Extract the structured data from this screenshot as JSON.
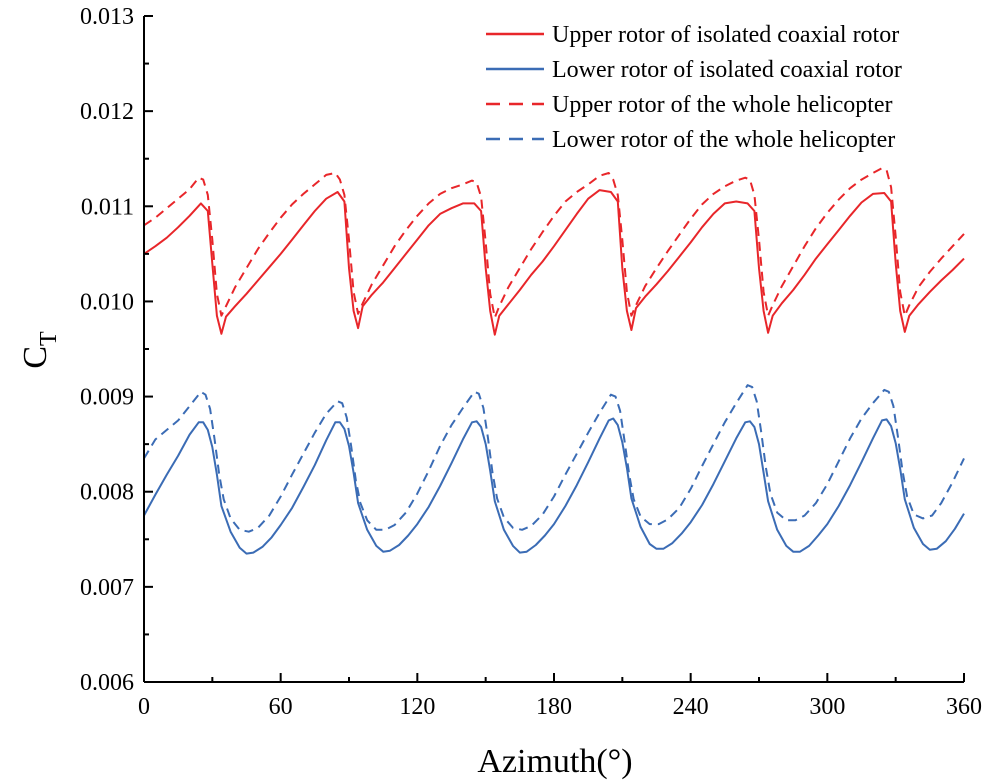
{
  "chart_data": {
    "type": "line",
    "title": "",
    "xlabel": "Azimuth(°)",
    "ylabel_main": "C",
    "ylabel_sub": "T",
    "xlim": [
      0,
      360
    ],
    "ylim": [
      0.006,
      0.013
    ],
    "xticks": [
      "0",
      "60",
      "120",
      "180",
      "240",
      "300",
      "360"
    ],
    "yticks": [
      "0.006",
      "0.007",
      "0.008",
      "0.009",
      "0.010",
      "0.011",
      "0.012",
      "0.013"
    ],
    "grid": false,
    "legend_position": "top-right",
    "series": [
      {
        "name": "Upper rotor of isolated coaxial rotor",
        "color": "#e8262a",
        "dash": "solid",
        "x": [
          0,
          5,
          10,
          15,
          20,
          25,
          28,
          30,
          32,
          34,
          36,
          40,
          45,
          50,
          55,
          60,
          65,
          70,
          75,
          80,
          85,
          88,
          90,
          92,
          94,
          96,
          100,
          105,
          110,
          115,
          120,
          125,
          130,
          135,
          140,
          145,
          148,
          150,
          152,
          154,
          156,
          160,
          165,
          170,
          175,
          180,
          185,
          190,
          195,
          200,
          205,
          208,
          210,
          212,
          214,
          216,
          220,
          225,
          230,
          235,
          240,
          245,
          250,
          255,
          260,
          265,
          268,
          270,
          272,
          274,
          276,
          280,
          285,
          290,
          295,
          300,
          305,
          310,
          315,
          320,
          325,
          328,
          330,
          332,
          334,
          336,
          340,
          345,
          350,
          355,
          360
        ],
        "y": [
          0.0105,
          0.01058,
          0.01067,
          0.01078,
          0.0109,
          0.01103,
          0.01095,
          0.0104,
          0.00985,
          0.00966,
          0.00984,
          0.00995,
          0.01008,
          0.01022,
          0.01036,
          0.0105,
          0.01065,
          0.0108,
          0.01095,
          0.01108,
          0.01115,
          0.01105,
          0.01035,
          0.0099,
          0.00972,
          0.00995,
          0.01007,
          0.0102,
          0.01035,
          0.0105,
          0.01065,
          0.0108,
          0.01092,
          0.01098,
          0.01103,
          0.01103,
          0.01095,
          0.01035,
          0.0099,
          0.00965,
          0.00985,
          0.00997,
          0.01012,
          0.01028,
          0.01042,
          0.01058,
          0.01075,
          0.01092,
          0.01108,
          0.01117,
          0.01115,
          0.01105,
          0.01035,
          0.0099,
          0.0097,
          0.00993,
          0.01005,
          0.01018,
          0.01032,
          0.01047,
          0.01062,
          0.01078,
          0.01092,
          0.01103,
          0.01105,
          0.01103,
          0.01095,
          0.01035,
          0.0099,
          0.00967,
          0.00985,
          0.00998,
          0.01012,
          0.01028,
          0.01045,
          0.0106,
          0.01075,
          0.0109,
          0.01104,
          0.01113,
          0.01114,
          0.01105,
          0.0104,
          0.0099,
          0.00968,
          0.00985,
          0.00997,
          0.0101,
          0.01022,
          0.01033,
          0.01045
        ]
      },
      {
        "name": "Lower rotor of isolated coaxial rotor",
        "color": "#3b6cb5",
        "dash": "solid",
        "x": [
          0,
          5,
          10,
          15,
          20,
          24,
          26,
          28,
          30,
          32,
          34,
          38,
          42,
          45,
          48,
          52,
          56,
          60,
          65,
          70,
          75,
          80,
          84,
          86,
          88,
          90,
          92,
          94,
          98,
          102,
          105,
          108,
          112,
          116,
          120,
          125,
          130,
          135,
          140,
          144,
          146,
          148,
          150,
          152,
          154,
          158,
          162,
          165,
          168,
          172,
          176,
          180,
          185,
          190,
          195,
          200,
          204,
          206,
          208,
          210,
          212,
          214,
          218,
          222,
          225,
          228,
          232,
          236,
          240,
          245,
          250,
          255,
          260,
          264,
          266,
          268,
          270,
          272,
          274,
          278,
          282,
          285,
          288,
          292,
          296,
          300,
          305,
          310,
          315,
          320,
          324,
          326,
          328,
          330,
          332,
          334,
          338,
          342,
          345,
          348,
          352,
          356,
          360
        ],
        "y": [
          0.00775,
          0.00797,
          0.00818,
          0.00838,
          0.0086,
          0.00873,
          0.00873,
          0.00865,
          0.00847,
          0.00818,
          0.00785,
          0.00758,
          0.00741,
          0.00735,
          0.00736,
          0.00742,
          0.00752,
          0.00765,
          0.00783,
          0.00805,
          0.00828,
          0.00854,
          0.00873,
          0.00873,
          0.00866,
          0.00848,
          0.0082,
          0.00788,
          0.0076,
          0.00743,
          0.00737,
          0.00738,
          0.00744,
          0.00754,
          0.00766,
          0.00784,
          0.00806,
          0.0083,
          0.00855,
          0.00873,
          0.00874,
          0.00868,
          0.0085,
          0.00822,
          0.0079,
          0.0076,
          0.00743,
          0.00736,
          0.00737,
          0.00744,
          0.00754,
          0.00766,
          0.00785,
          0.00807,
          0.00831,
          0.00856,
          0.00875,
          0.00877,
          0.0087,
          0.00852,
          0.00825,
          0.00793,
          0.00763,
          0.00745,
          0.0074,
          0.0074,
          0.00746,
          0.00756,
          0.00768,
          0.00786,
          0.00808,
          0.00832,
          0.00856,
          0.00873,
          0.00874,
          0.00868,
          0.0085,
          0.0082,
          0.0079,
          0.0076,
          0.00743,
          0.00737,
          0.00737,
          0.00743,
          0.00754,
          0.00766,
          0.00785,
          0.00807,
          0.00831,
          0.00856,
          0.00875,
          0.00876,
          0.00869,
          0.00851,
          0.00824,
          0.00792,
          0.00762,
          0.00745,
          0.00739,
          0.0074,
          0.00748,
          0.00761,
          0.00777
        ]
      },
      {
        "name": "Upper rotor of the whole helicopter",
        "color": "#e8262a",
        "dash": "dashed",
        "x": [
          0,
          5,
          10,
          15,
          20,
          24,
          26,
          28,
          30,
          32,
          34,
          36,
          40,
          45,
          50,
          55,
          60,
          65,
          70,
          75,
          80,
          84,
          86,
          88,
          90,
          92,
          94,
          96,
          100,
          105,
          110,
          115,
          120,
          125,
          130,
          135,
          140,
          144,
          146,
          148,
          150,
          152,
          154,
          156,
          160,
          165,
          170,
          175,
          180,
          185,
          190,
          195,
          200,
          204,
          206,
          208,
          210,
          212,
          214,
          216,
          220,
          225,
          230,
          235,
          240,
          245,
          250,
          255,
          260,
          264,
          266,
          268,
          270,
          272,
          274,
          276,
          280,
          285,
          290,
          295,
          300,
          305,
          310,
          315,
          320,
          324,
          326,
          328,
          330,
          332,
          334,
          336,
          340,
          345,
          350,
          355,
          360
        ],
        "y": [
          0.0108,
          0.01088,
          0.01098,
          0.01108,
          0.01118,
          0.0113,
          0.01128,
          0.01112,
          0.01065,
          0.01008,
          0.00985,
          0.00995,
          0.01015,
          0.01035,
          0.01055,
          0.01072,
          0.01088,
          0.01102,
          0.01113,
          0.01123,
          0.01133,
          0.01135,
          0.01128,
          0.01112,
          0.01065,
          0.0101,
          0.00987,
          0.00998,
          0.01018,
          0.01038,
          0.01058,
          0.01075,
          0.0109,
          0.01103,
          0.01113,
          0.01119,
          0.01123,
          0.01127,
          0.01125,
          0.0111,
          0.01062,
          0.01008,
          0.00983,
          0.00995,
          0.01015,
          0.01035,
          0.01055,
          0.01073,
          0.0109,
          0.01105,
          0.01115,
          0.01123,
          0.01132,
          0.01135,
          0.01128,
          0.01112,
          0.01065,
          0.0101,
          0.00985,
          0.00996,
          0.01016,
          0.01035,
          0.01053,
          0.0107,
          0.01087,
          0.01102,
          0.01113,
          0.01121,
          0.01127,
          0.0113,
          0.01128,
          0.01112,
          0.01065,
          0.0101,
          0.00985,
          0.00996,
          0.01016,
          0.01037,
          0.01058,
          0.01077,
          0.01093,
          0.01107,
          0.01119,
          0.01128,
          0.01135,
          0.0114,
          0.01138,
          0.0112,
          0.01068,
          0.0101,
          0.00985,
          0.00996,
          0.01015,
          0.01031,
          0.01045,
          0.01058,
          0.01071
        ]
      },
      {
        "name": "Lower rotor of the whole helicopter",
        "color": "#3b6cb5",
        "dash": "dashed",
        "x": [
          0,
          5,
          10,
          15,
          20,
          25,
          27,
          29,
          31,
          33,
          35,
          38,
          42,
          46,
          50,
          55,
          60,
          65,
          70,
          75,
          80,
          85,
          87,
          89,
          91,
          93,
          95,
          98,
          102,
          106,
          110,
          115,
          120,
          125,
          130,
          135,
          140,
          145,
          147,
          149,
          151,
          153,
          155,
          158,
          162,
          166,
          170,
          175,
          180,
          185,
          190,
          195,
          200,
          205,
          207,
          209,
          211,
          213,
          215,
          218,
          222,
          226,
          230,
          235,
          240,
          245,
          250,
          255,
          260,
          265,
          267,
          269,
          271,
          273,
          275,
          278,
          282,
          286,
          290,
          295,
          300,
          305,
          310,
          315,
          320,
          325,
          327,
          329,
          331,
          333,
          335,
          338,
          342,
          346,
          350,
          355,
          360
        ],
        "y": [
          0.00835,
          0.00855,
          0.00865,
          0.00875,
          0.0089,
          0.00905,
          0.00902,
          0.00887,
          0.00855,
          0.00818,
          0.00792,
          0.00772,
          0.0076,
          0.00758,
          0.00762,
          0.00775,
          0.00795,
          0.00818,
          0.0084,
          0.00862,
          0.00882,
          0.00895,
          0.00893,
          0.00878,
          0.00847,
          0.00812,
          0.00788,
          0.0077,
          0.0076,
          0.0076,
          0.00765,
          0.00778,
          0.00798,
          0.00822,
          0.00848,
          0.0087,
          0.00888,
          0.00905,
          0.00903,
          0.00888,
          0.00857,
          0.0082,
          0.00793,
          0.00773,
          0.00762,
          0.0076,
          0.00764,
          0.00776,
          0.00795,
          0.00818,
          0.0084,
          0.00862,
          0.00883,
          0.00902,
          0.009,
          0.00885,
          0.00853,
          0.00818,
          0.00792,
          0.00774,
          0.00766,
          0.00766,
          0.00771,
          0.00783,
          0.00803,
          0.00827,
          0.0085,
          0.00873,
          0.00893,
          0.00912,
          0.0091,
          0.00895,
          0.00862,
          0.00826,
          0.00798,
          0.00778,
          0.0077,
          0.0077,
          0.00775,
          0.00788,
          0.00808,
          0.00832,
          0.00856,
          0.00877,
          0.00893,
          0.00907,
          0.00905,
          0.0089,
          0.00858,
          0.00822,
          0.00795,
          0.00776,
          0.00772,
          0.00775,
          0.00788,
          0.0081,
          0.00835
        ]
      }
    ]
  }
}
